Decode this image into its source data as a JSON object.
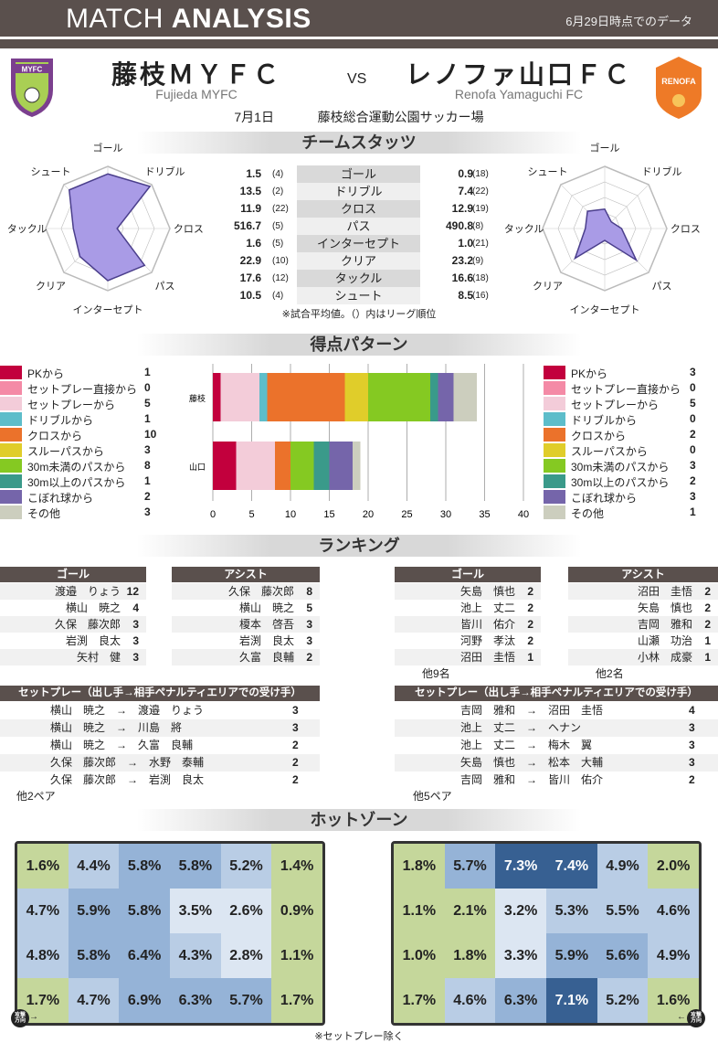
{
  "header": {
    "title_light": "MATCH",
    "title_bold": "ANALYSIS",
    "as_of": "6月29日時点でのデータ"
  },
  "match": {
    "home": {
      "name": "藤枝ＭＹＦＣ",
      "name_en": "Fujieda MYFC",
      "logo_text": "MYFC",
      "short": "藤枝"
    },
    "vs": "VS",
    "away": {
      "name": "レノファ山口ＦＣ",
      "name_en": "Renofa Yamaguchi FC",
      "logo_text": "RENOFA",
      "short": "山口"
    },
    "date": "7月1日",
    "venue": "藤枝総合運動公園サッカー場"
  },
  "sections": {
    "stats": "チームスタッツ",
    "pattern": "得点パターン",
    "ranking": "ランキング",
    "hotzone": "ホットゾーン"
  },
  "stats": {
    "note": "※試合平均値。（）内はリーグ順位",
    "rows": [
      {
        "label": "ゴール",
        "home": "1.5",
        "home_rank": 4,
        "away": "0.9",
        "away_rank": 18
      },
      {
        "label": "ドリブル",
        "home": "13.5",
        "home_rank": 2,
        "away": "7.4",
        "away_rank": 22
      },
      {
        "label": "クロス",
        "home": "11.9",
        "home_rank": 22,
        "away": "12.9",
        "away_rank": 19
      },
      {
        "label": "パス",
        "home": "516.7",
        "home_rank": 5,
        "away": "490.8",
        "away_rank": 8
      },
      {
        "label": "インターセプト",
        "home": "1.6",
        "home_rank": 5,
        "away": "1.0",
        "away_rank": 21
      },
      {
        "label": "クリア",
        "home": "22.9",
        "home_rank": 10,
        "away": "23.2",
        "away_rank": 9
      },
      {
        "label": "タックル",
        "home": "17.6",
        "home_rank": 12,
        "away": "16.6",
        "away_rank": 18
      },
      {
        "label": "シュート",
        "home": "10.5",
        "home_rank": 4,
        "away": "8.5",
        "away_rank": 16
      }
    ]
  },
  "radar_labels": [
    "ゴール",
    "ドリブル",
    "クロス",
    "パス",
    "インターセプト",
    "クリア",
    "タックル",
    "シュート"
  ],
  "colors": {
    "accent": "#5a504d",
    "radar_fill": "#a99be6",
    "radar_line": "#4b3f8c"
  },
  "chart_data": {
    "type": "bar",
    "stacked": true,
    "orientation": "horizontal",
    "categories": [
      "藤枝",
      "山口"
    ],
    "xlim": [
      0,
      40
    ],
    "xticks": [
      0,
      5,
      10,
      15,
      20,
      25,
      30,
      35,
      40
    ],
    "legend": "left and right",
    "series": [
      {
        "name": "PKから",
        "color": "#c2003d",
        "values": [
          1,
          3
        ]
      },
      {
        "name": "セットプレー直接から",
        "color": "#f48aa6",
        "values": [
          0,
          0
        ]
      },
      {
        "name": "セットプレーから",
        "color": "#f3ccd9",
        "values": [
          5,
          5
        ]
      },
      {
        "name": "ドリブルから",
        "color": "#5dbdca",
        "values": [
          1,
          0
        ]
      },
      {
        "name": "クロスから",
        "color": "#eb722b",
        "values": [
          10,
          2
        ]
      },
      {
        "name": "スルーパスから",
        "color": "#e0cd2a",
        "values": [
          3,
          0
        ]
      },
      {
        "name": "30m未満のパスから",
        "color": "#85c922",
        "values": [
          8,
          3
        ]
      },
      {
        "name": "30m以上のパスから",
        "color": "#3a9a8a",
        "values": [
          1,
          2
        ]
      },
      {
        "name": "こぼれ球から",
        "color": "#7565aa",
        "values": [
          2,
          3
        ]
      },
      {
        "name": "その他",
        "color": "#ccceBE",
        "values": [
          3,
          1
        ]
      }
    ]
  },
  "ranking": {
    "home": {
      "goal_header": "ゴール",
      "assist_header": "アシスト",
      "goals": [
        {
          "name": "渡邉　りょう",
          "v": 12
        },
        {
          "name": "横山　暁之",
          "v": 4
        },
        {
          "name": "久保　藤次郎",
          "v": 3
        },
        {
          "name": "岩渕　良太",
          "v": 3
        },
        {
          "name": "矢村　健",
          "v": 3
        }
      ],
      "assists": [
        {
          "name": "久保　藤次郎",
          "v": 8
        },
        {
          "name": "横山　暁之",
          "v": 5
        },
        {
          "name": "榎本　啓吾",
          "v": 3
        },
        {
          "name": "岩渕　良太",
          "v": 3
        },
        {
          "name": "久富　良輔",
          "v": 2
        }
      ],
      "setplay_header": "セットプレー（出し手→相手ペナルティエリアでの受け手）",
      "setplay": [
        {
          "pair": "横山　暁之　→　渡邉　りょう",
          "v": 3
        },
        {
          "pair": "横山　暁之　→　川島　將",
          "v": 3
        },
        {
          "pair": "横山　暁之　→　久富　良輔",
          "v": 2
        },
        {
          "pair": "久保　藤次郎　→　水野　泰輔",
          "v": 2
        },
        {
          "pair": "久保　藤次郎　→　岩渕　良太",
          "v": 2
        }
      ],
      "setplay_more": "他2ペア"
    },
    "away": {
      "goal_header": "ゴール",
      "assist_header": "アシスト",
      "goals": [
        {
          "name": "矢島　慎也",
          "v": 2
        },
        {
          "name": "池上　丈二",
          "v": 2
        },
        {
          "name": "皆川　佑介",
          "v": 2
        },
        {
          "name": "河野　孝汰",
          "v": 2
        },
        {
          "name": "沼田　圭悟",
          "v": 1
        }
      ],
      "goals_more": "他9名",
      "assists": [
        {
          "name": "沼田　圭悟",
          "v": 2
        },
        {
          "name": "矢島　慎也",
          "v": 2
        },
        {
          "name": "吉岡　雅和",
          "v": 2
        },
        {
          "name": "山瀬　功治",
          "v": 1
        },
        {
          "name": "小林　成豪",
          "v": 1
        }
      ],
      "assists_more": "他2名",
      "setplay_header": "セットプレー（出し手→相手ペナルティエリアでの受け手）",
      "setplay": [
        {
          "pair": "吉岡　雅和　→　沼田　圭悟",
          "v": 4
        },
        {
          "pair": "池上　丈二　→　ヘナン",
          "v": 3
        },
        {
          "pair": "池上　丈二　→　梅木　翼",
          "v": 3
        },
        {
          "pair": "矢島　慎也　→　松本　大輔",
          "v": 3
        },
        {
          "pair": "吉岡　雅和　→　皆川　佑介",
          "v": 2
        }
      ],
      "setplay_more": "他5ペア"
    }
  },
  "hotzone": {
    "note": "※セットプレー除く",
    "direction_label": "攻撃方向",
    "home": [
      [
        "1.6%",
        "4.4%",
        "5.8%",
        "5.8%",
        "5.2%",
        "1.4%"
      ],
      [
        "4.7%",
        "5.9%",
        "5.8%",
        "3.5%",
        "2.6%",
        "0.9%"
      ],
      [
        "4.8%",
        "5.8%",
        "6.4%",
        "4.3%",
        "2.8%",
        "1.1%"
      ],
      [
        "1.7%",
        "4.7%",
        "6.9%",
        "6.3%",
        "5.7%",
        "1.7%"
      ]
    ],
    "away": [
      [
        "1.8%",
        "5.7%",
        "7.3%",
        "7.4%",
        "4.9%",
        "2.0%"
      ],
      [
        "1.1%",
        "2.1%",
        "3.2%",
        "5.3%",
        "5.5%",
        "4.6%"
      ],
      [
        "1.0%",
        "1.8%",
        "3.3%",
        "5.9%",
        "5.6%",
        "4.9%"
      ],
      [
        "1.7%",
        "4.6%",
        "6.3%",
        "7.1%",
        "5.2%",
        "1.6%"
      ]
    ]
  }
}
